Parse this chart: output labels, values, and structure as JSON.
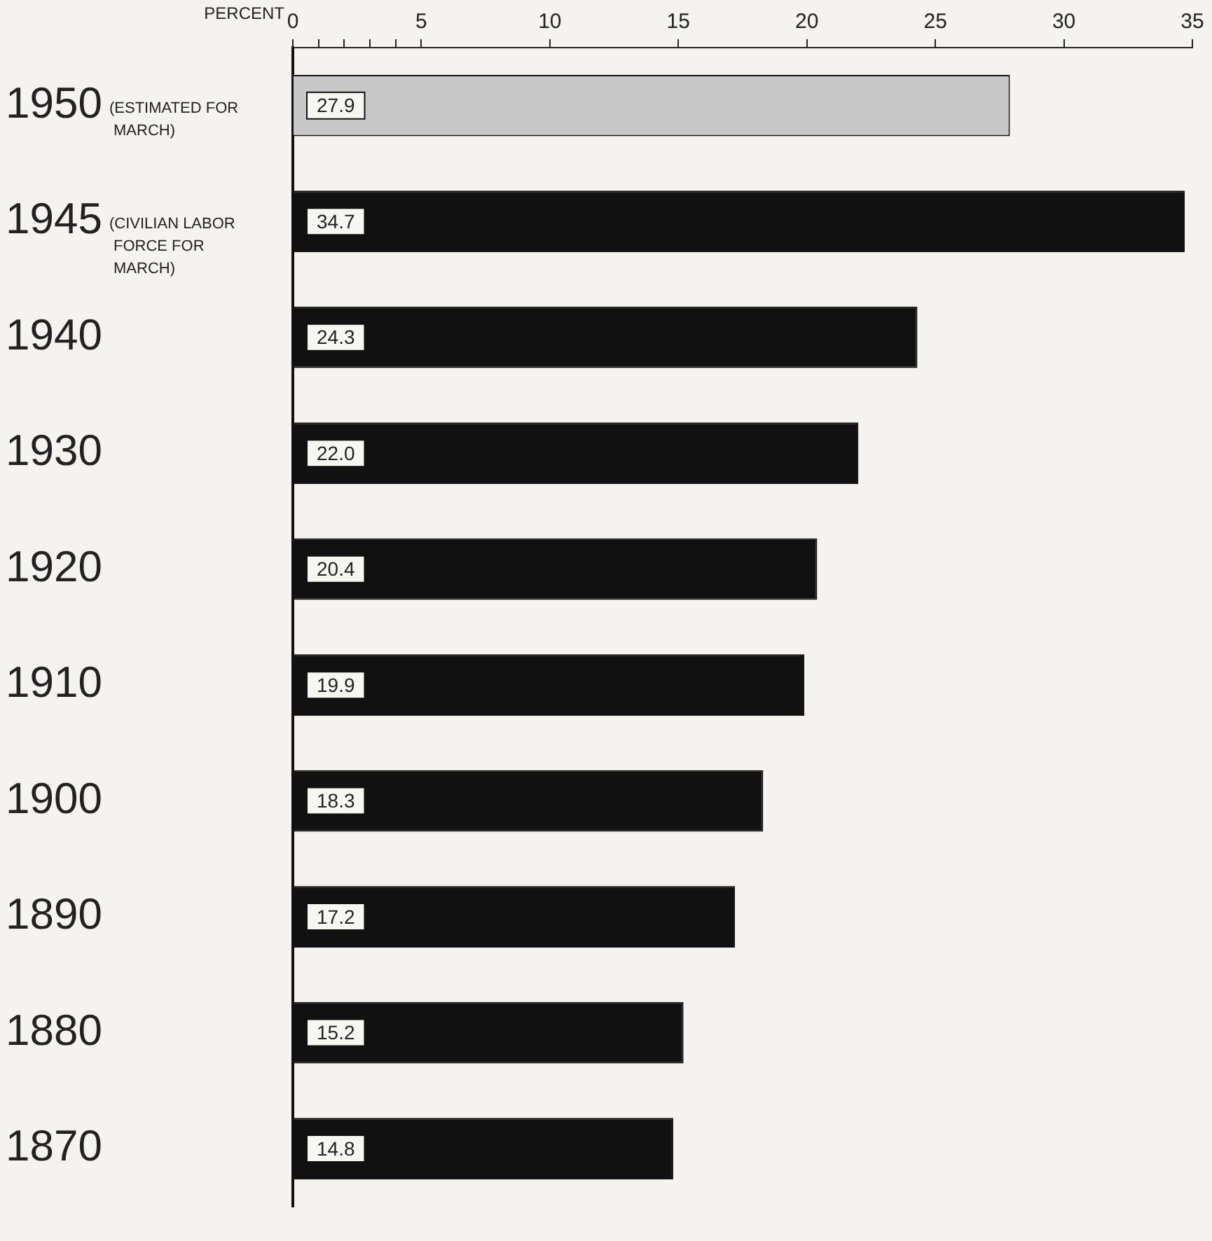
{
  "chart_data": {
    "type": "bar",
    "orientation": "horizontal",
    "xlabel": "PERCENT",
    "categories": [
      "1950",
      "1945",
      "1940",
      "1930",
      "1920",
      "1910",
      "1900",
      "1890",
      "1880",
      "1870"
    ],
    "values": [
      27.9,
      34.7,
      24.3,
      22.0,
      20.4,
      19.9,
      18.3,
      17.2,
      15.2,
      14.8
    ],
    "colors": [
      "#c8c8c8",
      "#111111",
      "#111111",
      "#111111",
      "#111111",
      "#111111",
      "#111111",
      "#111111",
      "#111111",
      "#111111"
    ],
    "xlim": [
      0,
      35
    ],
    "xticks": [
      0,
      {
        "value": 1,
        "label": null
      },
      {
        "value": 2,
        "label": null
      },
      {
        "value": 3,
        "label": null
      },
      {
        "value": 4,
        "label": null
      },
      5,
      10,
      15,
      20,
      25,
      30,
      35
    ],
    "value_labels": [
      "27.9",
      "34.7",
      "24.3",
      "22.0",
      "20.4",
      "19.9",
      "18.3",
      "17.2",
      "15.2",
      "14.8"
    ],
    "grid": false,
    "legend": false,
    "annotations": [
      "(ESTIMATED FOR MARCH)",
      "(CIVILIAN LABOR FORCE FOR MARCH)"
    ]
  }
}
